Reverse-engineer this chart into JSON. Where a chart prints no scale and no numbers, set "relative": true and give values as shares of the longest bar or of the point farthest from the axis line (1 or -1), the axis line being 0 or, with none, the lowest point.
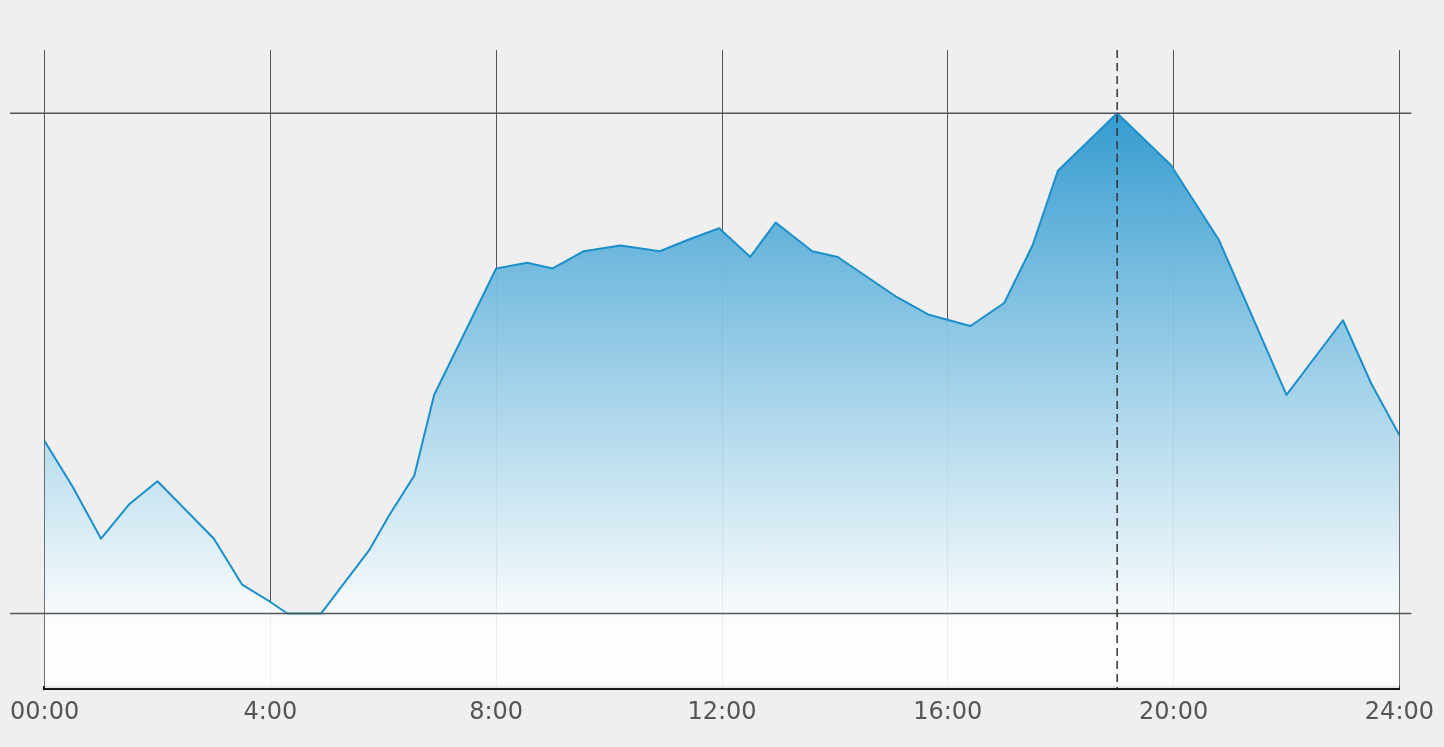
{
  "chart_data": {
    "type": "area",
    "relative": true,
    "x": [
      0,
      0.5,
      1,
      1.5,
      2,
      2.5,
      3,
      3.5,
      4,
      4.3,
      4.9,
      5.75,
      6.1,
      6.55,
      6.9,
      7.4,
      8,
      8.55,
      9,
      9.55,
      10.2,
      10.9,
      11.4,
      11.95,
      12.5,
      12.95,
      13.6,
      14.05,
      14.5,
      15.1,
      15.65,
      16.4,
      17,
      17.5,
      17.95,
      19,
      19.95,
      20.8,
      22,
      23,
      23.5,
      24
    ],
    "series": [
      {
        "color": "#1a8fca",
        "values": [
          0.43,
          0.35,
          0.26,
          0.32,
          0.36,
          0.31,
          0.26,
          0.18,
          0.15,
          0.13,
          0.13,
          0.24,
          0.3,
          0.37,
          0.51,
          0.61,
          0.73,
          0.74,
          0.73,
          0.76,
          0.77,
          0.76,
          0.78,
          0.8,
          0.75,
          0.81,
          0.76,
          0.75,
          0.72,
          0.68,
          0.65,
          0.63,
          0.67,
          0.77,
          0.9,
          1,
          0.91,
          0.78,
          0.51,
          0.64,
          0.53,
          0.44
        ]
      }
    ],
    "xlim": [
      0,
      24
    ],
    "xticks": [
      {
        "value": 0,
        "label": "00:00"
      },
      {
        "value": 4,
        "label": "4:00"
      },
      {
        "value": 8,
        "label": "8:00"
      },
      {
        "value": 12,
        "label": "12:00"
      },
      {
        "value": 16,
        "label": "16:00"
      },
      {
        "value": 20,
        "label": "20:00"
      },
      {
        "value": 24,
        "label": "24:00"
      }
    ],
    "grid": "x",
    "legend": false,
    "marker": "none",
    "line_style": "solid",
    "ref_lines": [
      {
        "axis": "y",
        "value": 1,
        "color": "#555555",
        "line_style": "solid"
      },
      {
        "axis": "y",
        "value": 0.13,
        "color": "#555555",
        "line_style": "solid"
      },
      {
        "axis": "x",
        "value": 19,
        "color": "#333333",
        "line_style": "dashed"
      }
    ]
  }
}
